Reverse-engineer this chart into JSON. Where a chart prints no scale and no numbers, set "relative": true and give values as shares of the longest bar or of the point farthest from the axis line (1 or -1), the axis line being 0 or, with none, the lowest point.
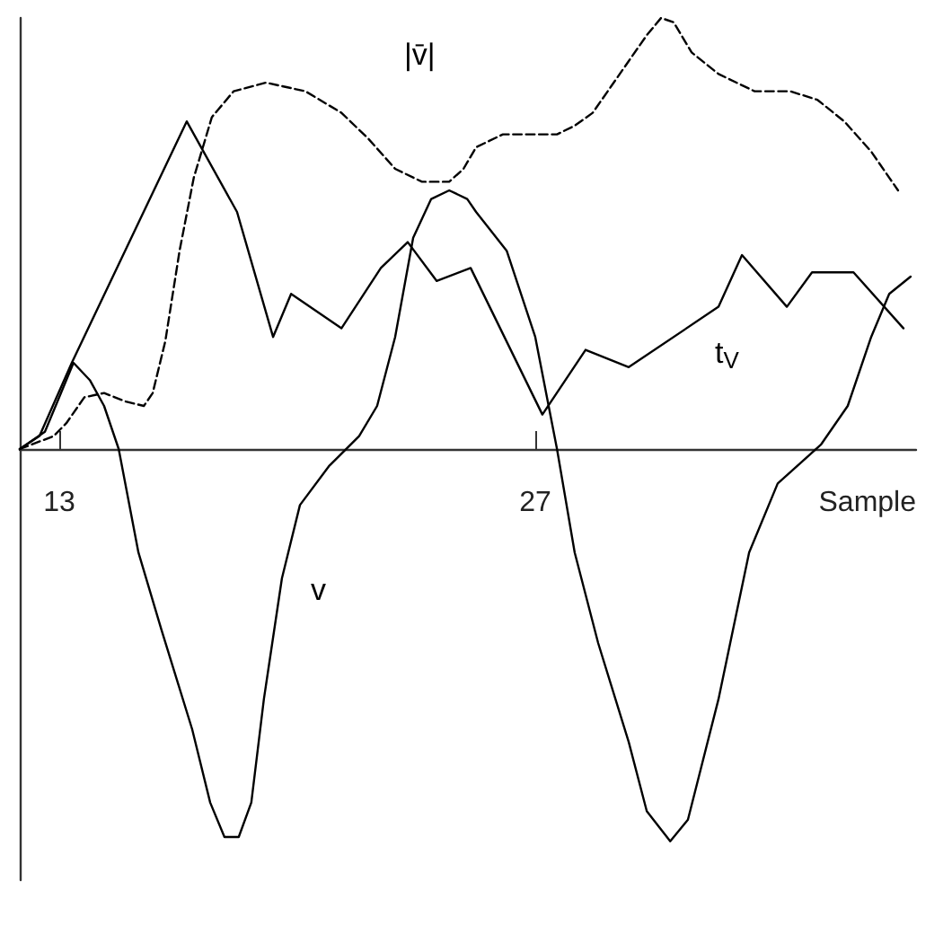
{
  "chart_data": {
    "type": "line",
    "relative": true,
    "xlabel": "Sample",
    "xlim": [
      11.84,
      38.2
    ],
    "xticks": [
      13,
      27
    ],
    "grid": false,
    "marker": "none",
    "series": [
      {
        "name": "|v̄|",
        "color": "#000000",
        "line_style": "dashed",
        "x": [
          11.84,
          12.84,
          13.21,
          13.74,
          14.32,
          14.96,
          15.49,
          15.75,
          16.12,
          16.54,
          16.96,
          17.49,
          18.13,
          19.08,
          20.24,
          21.3,
          22.09,
          22.88,
          23.67,
          24.47,
          24.89,
          25.26,
          26.05,
          27.64,
          28.16,
          28.69,
          29.22,
          29.75,
          30.28,
          30.7,
          31.07,
          31.6,
          32.39,
          33.45,
          34.5,
          35.3,
          36.09,
          36.88,
          37.67
        ],
        "values": [
          0,
          0.03,
          0.06,
          0.12,
          0.13,
          0.11,
          0.1,
          0.13,
          0.25,
          0.46,
          0.63,
          0.77,
          0.83,
          0.85,
          0.83,
          0.78,
          0.72,
          0.65,
          0.62,
          0.62,
          0.65,
          0.7,
          0.73,
          0.73,
          0.75,
          0.78,
          0.84,
          0.9,
          0.96,
          1,
          0.99,
          0.92,
          0.87,
          0.83,
          0.83,
          0.81,
          0.76,
          0.69,
          0.6
        ]
      },
      {
        "name": "t$_{V}$",
        "color": "#000000",
        "line_style": "solid",
        "x": [
          11.84,
          12.42,
          13.37,
          16.75,
          18.23,
          19.29,
          19.82,
          21.3,
          22.46,
          23.25,
          24.1,
          25.1,
          27.21,
          28.48,
          29.75,
          32.39,
          33.08,
          34.4,
          35.14,
          36.36,
          37.83
        ],
        "values": [
          0,
          0.03,
          0.2,
          0.76,
          0.55,
          0.26,
          0.36,
          0.28,
          0.42,
          0.48,
          0.39,
          0.42,
          0.08,
          0.23,
          0.19,
          0.33,
          0.45,
          0.33,
          0.41,
          0.41,
          0.28
        ]
      },
      {
        "name": "v",
        "color": "#000000",
        "line_style": "solid",
        "x": [
          11.84,
          12.58,
          13.42,
          13.9,
          14.32,
          14.75,
          15.33,
          16.01,
          16.91,
          17.44,
          17.86,
          18.28,
          18.65,
          19.02,
          19.55,
          20.08,
          20.93,
          21.82,
          22.35,
          22.88,
          23.41,
          23.94,
          24.47,
          25.0,
          25.26,
          26.16,
          27.0,
          27.64,
          28.16,
          28.85,
          29.75,
          30.28,
          30.97,
          31.49,
          32.39,
          33.29,
          34.13,
          35.4,
          36.19,
          36.88,
          37.41,
          38.04
        ],
        "values": [
          0,
          0.04,
          0.2,
          0.16,
          0.1,
          0,
          -0.24,
          -0.42,
          -0.65,
          -0.82,
          -0.9,
          -0.9,
          -0.82,
          -0.58,
          -0.3,
          -0.13,
          -0.04,
          0.03,
          0.1,
          0.26,
          0.49,
          0.58,
          0.6,
          0.58,
          0.55,
          0.46,
          0.26,
          0,
          -0.24,
          -0.45,
          -0.68,
          -0.84,
          -0.91,
          -0.86,
          -0.58,
          -0.24,
          -0.08,
          0.01,
          0.1,
          0.26,
          0.36,
          0.4
        ]
      }
    ]
  }
}
